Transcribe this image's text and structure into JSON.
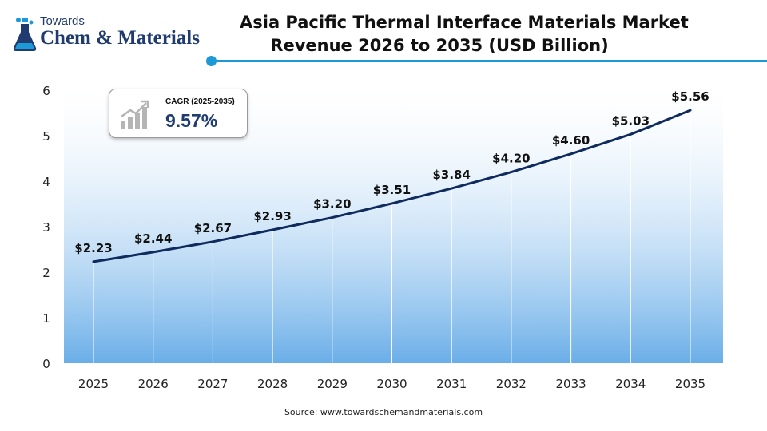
{
  "brand": {
    "small": "Towards",
    "main": "Chem & Materials",
    "colors": {
      "navy": "#1f3b70",
      "accent": "#1d9ad6"
    },
    "icon": "flask-icon"
  },
  "header": {
    "title_line1": "Asia Pacific Thermal Interface Materials Market",
    "title_line2": "Revenue 2026 to 2035 (USD Billion)"
  },
  "cagr_badge": {
    "label": "CAGR (2025-2035)",
    "value": "9.57%",
    "icon": "bar-growth-icon"
  },
  "source": "Source: www.towardschemandmaterials.com",
  "chart_data": {
    "type": "area",
    "title": "Asia Pacific Thermal Interface Materials Market Revenue 2026 to 2035 (USD Billion)",
    "categories": [
      "2025",
      "2026",
      "2027",
      "2028",
      "2029",
      "2030",
      "2031",
      "2032",
      "2033",
      "2034",
      "2035"
    ],
    "values": [
      2.23,
      2.44,
      2.67,
      2.93,
      3.2,
      3.51,
      3.84,
      4.2,
      4.6,
      5.03,
      5.56
    ],
    "data_labels": [
      "$2.23",
      "$2.44",
      "$2.67",
      "$2.93",
      "$3.20",
      "$3.51",
      "$3.84",
      "$4.20",
      "$4.60",
      "$5.03",
      "$5.56"
    ],
    "yticks": [
      "0",
      "1",
      "2",
      "3",
      "4",
      "5",
      "6"
    ],
    "ylim": [
      0,
      6
    ],
    "xlabel": "",
    "ylabel": "",
    "grid": "vertical",
    "line_color": "#0f2a5c",
    "fill_color_top": "#ffffff",
    "fill_color_bottom": "#6aaee8"
  }
}
